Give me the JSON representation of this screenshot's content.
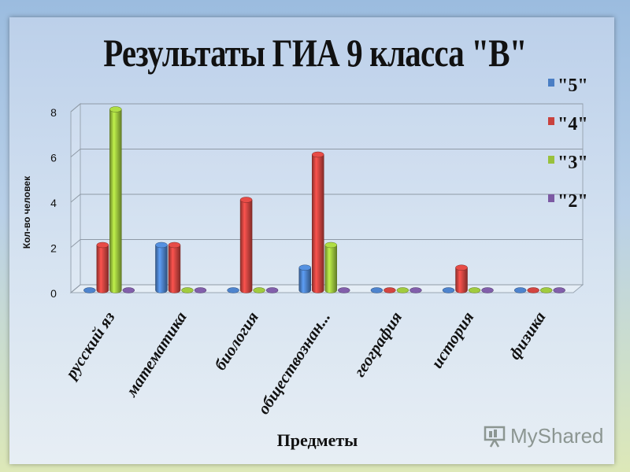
{
  "chart_data": {
    "type": "bar",
    "title": "Результаты ГИА 9 класса \"В\"",
    "xlabel": "Предметы",
    "ylabel": "Кол-во человек",
    "categories": [
      "русский яз",
      "математика",
      "биология",
      "обществознан...",
      "география",
      "история",
      "физика"
    ],
    "series": [
      {
        "name": "\"5\"",
        "values": [
          0,
          2,
          0,
          1,
          0,
          0,
          0
        ],
        "color": "#4a7ec4"
      },
      {
        "name": "\"4\"",
        "values": [
          2,
          2,
          4,
          6,
          0,
          1,
          0
        ],
        "color": "#c9423e"
      },
      {
        "name": "\"3\"",
        "values": [
          8,
          0,
          0,
          2,
          0,
          0,
          0
        ],
        "color": "#99c13c"
      },
      {
        "name": "\"2\"",
        "values": [
          0,
          0,
          0,
          0,
          0,
          0,
          0
        ],
        "color": "#7c5aa3"
      }
    ],
    "ylim": [
      0,
      8
    ],
    "yticks": [
      0,
      2,
      4,
      6,
      8
    ],
    "grid": true,
    "legend_position": "right"
  },
  "watermark": {
    "text": "MyShared"
  }
}
